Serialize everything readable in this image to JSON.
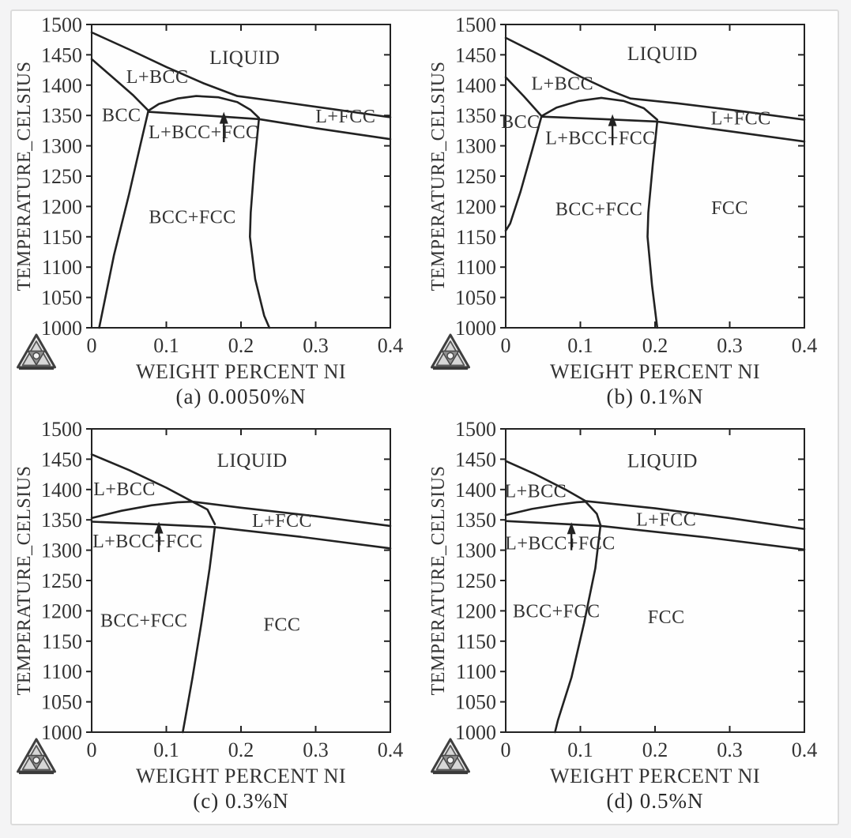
{
  "figure": {
    "background": "#f4f4f5",
    "card_background": "#fefefe",
    "card_border_color": "#dcdcdc",
    "line_color": "#222222",
    "text_color": "#333333",
    "logo_icon": "thermo-calc-triangle-logo"
  },
  "chart_data": [
    {
      "id": "a",
      "type": "line",
      "caption": "(a) 0.0050%N",
      "xlabel": "WEIGHT PERCENT NI",
      "ylabel": "TEMPERATURE_CELSIUS",
      "xlim": [
        0,
        0.4
      ],
      "ylim": [
        1000,
        1500
      ],
      "xticks": [
        0,
        0.1,
        0.2,
        0.3,
        0.4
      ],
      "xtick_labels": [
        "0",
        "0.1",
        "0.2",
        "0.3",
        "0.4"
      ],
      "yticks": [
        1000,
        1050,
        1100,
        1150,
        1200,
        1250,
        1300,
        1350,
        1400,
        1450,
        1500
      ],
      "grid": false,
      "legend": false,
      "series": [
        {
          "name": "liquidus",
          "points": [
            [
              0,
              1487
            ],
            [
              0.05,
              1459
            ],
            [
              0.1,
              1430
            ],
            [
              0.15,
              1403
            ],
            [
              0.195,
              1382
            ],
            [
              0.25,
              1373
            ],
            [
              0.32,
              1361
            ],
            [
              0.4,
              1347
            ]
          ]
        },
        {
          "name": "bcc-solidus",
          "points": [
            [
              0,
              1443
            ],
            [
              0.03,
              1411
            ],
            [
              0.055,
              1384
            ],
            [
              0.076,
              1358
            ]
          ]
        },
        {
          "name": "bcc-left-boundary",
          "points": [
            [
              0.076,
              1358
            ],
            [
              0.065,
              1300
            ],
            [
              0.05,
              1220
            ],
            [
              0.03,
              1120
            ],
            [
              0.01,
              1000
            ]
          ]
        },
        {
          "name": "three-phase-upper",
          "points": [
            [
              0.076,
              1358
            ],
            [
              0.09,
              1369
            ],
            [
              0.115,
              1378
            ],
            [
              0.14,
              1382
            ],
            [
              0.17,
              1380
            ],
            [
              0.195,
              1372
            ],
            [
              0.213,
              1359
            ],
            [
              0.224,
              1346
            ]
          ]
        },
        {
          "name": "three-phase-lower",
          "points": [
            [
              0.076,
              1356
            ],
            [
              0.14,
              1351
            ],
            [
              0.224,
              1344
            ],
            [
              0.3,
              1329
            ],
            [
              0.4,
              1311
            ]
          ]
        },
        {
          "name": "bcc-fcc-fcc-boundary",
          "points": [
            [
              0.224,
              1344
            ],
            [
              0.218,
              1270
            ],
            [
              0.213,
              1190
            ],
            [
              0.212,
              1150
            ],
            [
              0.219,
              1080
            ],
            [
              0.231,
              1020
            ],
            [
              0.238,
              1000
            ]
          ]
        }
      ],
      "region_labels": [
        {
          "text": "LIQUID",
          "x": 0.205,
          "T": 1445,
          "size": 25
        },
        {
          "text": "L+BCC",
          "x": 0.088,
          "T": 1414,
          "size": 24
        },
        {
          "text": "BCC",
          "x": 0.04,
          "T": 1351,
          "size": 24
        },
        {
          "text": "L+BCC+FCC",
          "x": 0.15,
          "T": 1323,
          "size": 24
        },
        {
          "text": "L+FCC",
          "x": 0.34,
          "T": 1349,
          "size": 24
        },
        {
          "text": "BCC+FCC",
          "x": 0.135,
          "T": 1183,
          "size": 24
        }
      ],
      "arrow": {
        "x": 0.177,
        "T_tip": 1356,
        "T_tail": 1306
      }
    },
    {
      "id": "b",
      "type": "line",
      "caption": "(b) 0.1%N",
      "xlabel": "WEIGHT PERCENT NI",
      "ylabel": "TEMPERATURE_CELSIUS",
      "xlim": [
        0,
        0.4
      ],
      "ylim": [
        1000,
        1500
      ],
      "xticks": [
        0,
        0.1,
        0.2,
        0.3,
        0.4
      ],
      "xtick_labels": [
        "0",
        "0.1",
        "0.2",
        "0.3",
        "0.4"
      ],
      "yticks": [
        1000,
        1050,
        1100,
        1150,
        1200,
        1250,
        1300,
        1350,
        1400,
        1450,
        1500
      ],
      "grid": false,
      "legend": false,
      "series": [
        {
          "name": "liquidus",
          "points": [
            [
              0,
              1478
            ],
            [
              0.05,
              1447
            ],
            [
              0.1,
              1414
            ],
            [
              0.14,
              1391
            ],
            [
              0.167,
              1378
            ],
            [
              0.23,
              1370
            ],
            [
              0.31,
              1358
            ],
            [
              0.4,
              1343
            ]
          ]
        },
        {
          "name": "bcc-solidus",
          "points": [
            [
              0,
              1413
            ],
            [
              0.024,
              1382
            ],
            [
              0.048,
              1349
            ]
          ]
        },
        {
          "name": "bcc-left-boundary",
          "points": [
            [
              0.048,
              1349
            ],
            [
              0.036,
              1295
            ],
            [
              0.02,
              1225
            ],
            [
              0.006,
              1172
            ],
            [
              0,
              1160
            ]
          ]
        },
        {
          "name": "three-phase-upper",
          "points": [
            [
              0.048,
              1349
            ],
            [
              0.068,
              1363
            ],
            [
              0.098,
              1374
            ],
            [
              0.128,
              1379
            ],
            [
              0.158,
              1374
            ],
            [
              0.185,
              1362
            ],
            [
              0.203,
              1343
            ]
          ]
        },
        {
          "name": "three-phase-lower",
          "points": [
            [
              0.048,
              1348
            ],
            [
              0.13,
              1344
            ],
            [
              0.203,
              1340
            ],
            [
              0.3,
              1324
            ],
            [
              0.4,
              1307
            ]
          ]
        },
        {
          "name": "bcc-fcc-fcc-boundary",
          "points": [
            [
              0.203,
              1340
            ],
            [
              0.197,
              1270
            ],
            [
              0.191,
              1190
            ],
            [
              0.19,
              1150
            ],
            [
              0.196,
              1070
            ],
            [
              0.203,
              1000
            ]
          ]
        }
      ],
      "region_labels": [
        {
          "text": "LIQUID",
          "x": 0.21,
          "T": 1452,
          "size": 25
        },
        {
          "text": "L+BCC",
          "x": 0.076,
          "T": 1403,
          "size": 24
        },
        {
          "text": "BCC",
          "x": 0.02,
          "T": 1340,
          "size": 24
        },
        {
          "text": "L+BCC+FCC",
          "x": 0.127,
          "T": 1313,
          "size": 24
        },
        {
          "text": "L+FCC",
          "x": 0.315,
          "T": 1346,
          "size": 24
        },
        {
          "text": "BCC+FCC",
          "x": 0.125,
          "T": 1196,
          "size": 24
        },
        {
          "text": "FCC",
          "x": 0.3,
          "T": 1198,
          "size": 24
        }
      ],
      "arrow": {
        "x": 0.143,
        "T_tip": 1352,
        "T_tail": 1301
      }
    },
    {
      "id": "c",
      "type": "line",
      "caption": "(c) 0.3%N",
      "xlabel": "WEIGHT PERCENT NI",
      "ylabel": "TEMPERATURE_CELSIUS",
      "xlim": [
        0,
        0.4
      ],
      "ylim": [
        1000,
        1500
      ],
      "xticks": [
        0,
        0.1,
        0.2,
        0.3,
        0.4
      ],
      "xtick_labels": [
        "0",
        "0.1",
        "0.2",
        "0.3",
        "0.4"
      ],
      "yticks": [
        1000,
        1050,
        1100,
        1150,
        1200,
        1250,
        1300,
        1350,
        1400,
        1450,
        1500
      ],
      "grid": false,
      "legend": false,
      "series": [
        {
          "name": "liquidus",
          "points": [
            [
              0,
              1458
            ],
            [
              0.05,
              1432
            ],
            [
              0.1,
              1403
            ],
            [
              0.135,
              1380
            ],
            [
              0.2,
              1370
            ],
            [
              0.3,
              1356
            ],
            [
              0.4,
              1340
            ]
          ]
        },
        {
          "name": "three-phase-upper",
          "points": [
            [
              0,
              1353
            ],
            [
              0.04,
              1365
            ],
            [
              0.08,
              1374
            ],
            [
              0.115,
              1379
            ],
            [
              0.135,
              1380
            ],
            [
              0.155,
              1367
            ],
            [
              0.165,
              1343
            ]
          ]
        },
        {
          "name": "three-phase-lower",
          "points": [
            [
              0,
              1347
            ],
            [
              0.08,
              1343
            ],
            [
              0.165,
              1338
            ],
            [
              0.28,
              1322
            ],
            [
              0.4,
              1303
            ]
          ]
        },
        {
          "name": "bcc-fcc-fcc-boundary",
          "points": [
            [
              0.165,
              1338
            ],
            [
              0.158,
              1270
            ],
            [
              0.147,
              1180
            ],
            [
              0.135,
              1090
            ],
            [
              0.125,
              1020
            ],
            [
              0.122,
              1000
            ]
          ]
        }
      ],
      "region_labels": [
        {
          "text": "LIQUID",
          "x": 0.215,
          "T": 1448,
          "size": 25
        },
        {
          "text": "L+BCC",
          "x": 0.044,
          "T": 1401,
          "size": 24
        },
        {
          "text": "L+BCC+FCC",
          "x": 0.075,
          "T": 1315,
          "size": 24
        },
        {
          "text": "L+FCC",
          "x": 0.255,
          "T": 1349,
          "size": 24
        },
        {
          "text": "BCC+FCC",
          "x": 0.07,
          "T": 1184,
          "size": 24
        },
        {
          "text": "FCC",
          "x": 0.255,
          "T": 1178,
          "size": 24
        }
      ],
      "arrow": {
        "x": 0.09,
        "T_tip": 1347,
        "T_tail": 1297
      }
    },
    {
      "id": "d",
      "type": "line",
      "caption": "(d) 0.5%N",
      "xlabel": "WEIGHT PERCENT NI",
      "ylabel": "TEMPERATURE_CELSIUS",
      "xlim": [
        0,
        0.4
      ],
      "ylim": [
        1000,
        1500
      ],
      "xticks": [
        0,
        0.1,
        0.2,
        0.3,
        0.4
      ],
      "xtick_labels": [
        "0",
        "0.1",
        "0.2",
        "0.3",
        "0.4"
      ],
      "yticks": [
        1000,
        1050,
        1100,
        1150,
        1200,
        1250,
        1300,
        1350,
        1400,
        1450,
        1500
      ],
      "grid": false,
      "legend": false,
      "series": [
        {
          "name": "liquidus",
          "points": [
            [
              0,
              1447
            ],
            [
              0.04,
              1425
            ],
            [
              0.08,
              1400
            ],
            [
              0.107,
              1381
            ],
            [
              0.2,
              1369
            ],
            [
              0.3,
              1353
            ],
            [
              0.4,
              1335
            ]
          ]
        },
        {
          "name": "three-phase-upper",
          "points": [
            [
              0,
              1358
            ],
            [
              0.035,
              1368
            ],
            [
              0.07,
              1375
            ],
            [
              0.095,
              1379
            ],
            [
              0.107,
              1380
            ],
            [
              0.122,
              1360
            ],
            [
              0.127,
              1341
            ]
          ]
        },
        {
          "name": "three-phase-lower",
          "points": [
            [
              0,
              1348
            ],
            [
              0.065,
              1344
            ],
            [
              0.127,
              1340
            ],
            [
              0.27,
              1321
            ],
            [
              0.4,
              1301
            ]
          ]
        },
        {
          "name": "bcc-fcc-fcc-boundary",
          "points": [
            [
              0.127,
              1341
            ],
            [
              0.12,
              1270
            ],
            [
              0.105,
              1180
            ],
            [
              0.088,
              1090
            ],
            [
              0.07,
              1020
            ],
            [
              0.066,
              1000
            ]
          ]
        }
      ],
      "region_labels": [
        {
          "text": "LIQUID",
          "x": 0.21,
          "T": 1447,
          "size": 25
        },
        {
          "text": "L+BCC",
          "x": 0.04,
          "T": 1398,
          "size": 24
        },
        {
          "text": "L+BCC+FCC",
          "x": 0.073,
          "T": 1312,
          "size": 24
        },
        {
          "text": "L+FCC",
          "x": 0.215,
          "T": 1351,
          "size": 24
        },
        {
          "text": "BCC+FCC",
          "x": 0.068,
          "T": 1200,
          "size": 24
        },
        {
          "text": "FCC",
          "x": 0.215,
          "T": 1190,
          "size": 24
        }
      ],
      "arrow": {
        "x": 0.088,
        "T_tip": 1346,
        "T_tail": 1300
      }
    }
  ]
}
